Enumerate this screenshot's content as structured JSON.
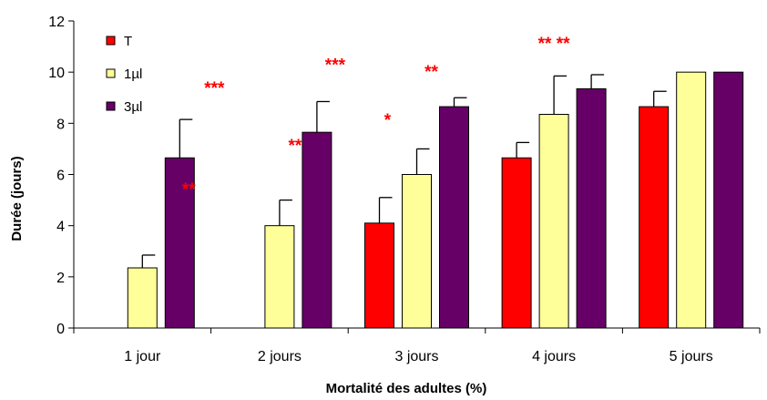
{
  "chart_data": {
    "type": "bar",
    "title": "",
    "xlabel": "Mortalité des adultes (%)",
    "ylabel": "Durée (jours)",
    "ylim": [
      0,
      12
    ],
    "yticks": [
      0,
      2,
      4,
      6,
      8,
      10,
      12
    ],
    "grid": false,
    "legend_position": "top-left",
    "categories": [
      "1 jour",
      "2 jours",
      "3 jours",
      "4 jours",
      "5 jours"
    ],
    "series": [
      {
        "name": "T",
        "color": "#ff0000",
        "values": [
          null,
          null,
          4.1,
          6.65,
          8.65
        ],
        "errors": [
          null,
          null,
          1.0,
          0.6,
          0.6
        ]
      },
      {
        "name": "1µl",
        "color": "#ffff99",
        "values": [
          2.35,
          4.0,
          6.0,
          8.35,
          10.0
        ],
        "errors": [
          0.5,
          1.0,
          1.0,
          1.5,
          0
        ]
      },
      {
        "name": "3µl",
        "color": "#660066",
        "values": [
          6.65,
          7.65,
          8.65,
          9.35,
          10.0
        ],
        "errors": [
          1.5,
          1.2,
          0.35,
          0.55,
          0
        ]
      }
    ],
    "annotations": [
      {
        "text": "***",
        "category": 0,
        "y": 9.4
      },
      {
        "text": "**",
        "category": 0,
        "y": 5.45
      },
      {
        "text": "***",
        "category": 1,
        "y": 10.3
      },
      {
        "text": "**",
        "category": 1,
        "y": 7.15
      },
      {
        "text": "**",
        "category": 2,
        "y": 10.05
      },
      {
        "text": "*",
        "category": 2,
        "y": 8.15
      },
      {
        "text": "** **",
        "category": 3,
        "y": 11.15
      }
    ]
  }
}
